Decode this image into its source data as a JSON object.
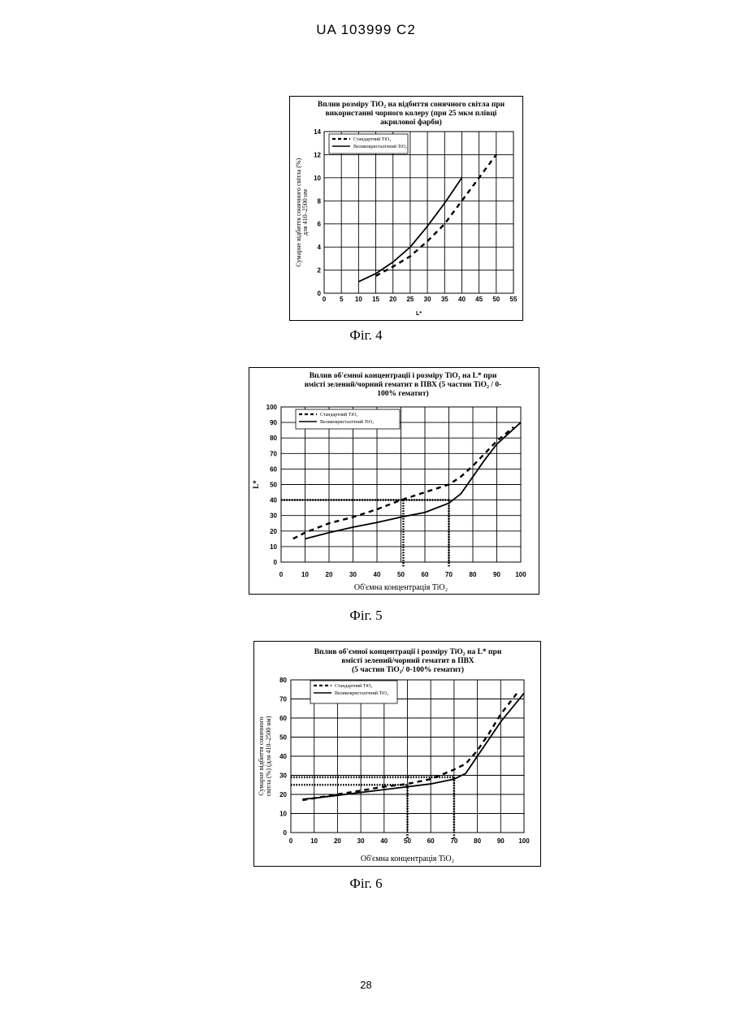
{
  "header": {
    "patent_id": "UA   103999   C2"
  },
  "page_number": "28",
  "chart_data": [
    {
      "id": "fig4",
      "type": "line",
      "caption": "Фіг. 4",
      "title": [
        "Вплив розміру TiO₂ на відбиття сонячного світла при",
        "використанні чорного колеру (при 25 мкм плівці",
        "акрилової фарби)"
      ],
      "xlabel": "L*",
      "ylabel": [
        "Сумарне відбиття сонячного світла (%)",
        "для 410–2500 нм"
      ],
      "xlim": [
        0,
        55
      ],
      "ylim": [
        0,
        14
      ],
      "xticks": [
        0,
        5,
        10,
        15,
        20,
        25,
        30,
        35,
        40,
        45,
        50,
        55
      ],
      "yticks": [
        0,
        2,
        4,
        6,
        8,
        10,
        12,
        14
      ],
      "grid": true,
      "legend_position": "top-left",
      "series": [
        {
          "name": "Стандартний TiO₂",
          "style": "dashed",
          "x": [
            15,
            20,
            25,
            30,
            35,
            40,
            45,
            50
          ],
          "y": [
            1.5,
            2.3,
            3.2,
            4.5,
            6,
            8,
            10,
            12
          ]
        },
        {
          "name": "Великокристалічний TiO₂",
          "style": "solid",
          "x": [
            10,
            15,
            20,
            25,
            30,
            35,
            40
          ],
          "y": [
            1,
            1.7,
            2.7,
            4,
            5.8,
            7.8,
            10
          ]
        }
      ],
      "guides": []
    },
    {
      "id": "fig5",
      "type": "line",
      "caption": "Фіг. 5",
      "title": [
        "Вплив об'ємної концентрації і розміру TiO₂ на L* при",
        "вмісті зелений/чорний гематит в ПВХ (5 частин TiO₂ / 0-",
        "100% гематит)"
      ],
      "xlabel": "Об'ємна концентрація TiO₂",
      "ylabel": [
        "L*"
      ],
      "xlim": [
        0,
        100
      ],
      "ylim": [
        0,
        100
      ],
      "xticks": [
        0,
        10,
        20,
        30,
        40,
        50,
        60,
        70,
        80,
        90,
        100
      ],
      "yticks": [
        0,
        10,
        20,
        30,
        40,
        50,
        60,
        70,
        80,
        90,
        100
      ],
      "grid": true,
      "legend_position": "top-left",
      "series": [
        {
          "name": "Стандартний TiO₂",
          "style": "dashed",
          "x": [
            5,
            10,
            20,
            30,
            40,
            50,
            60,
            70,
            75,
            80,
            85,
            90,
            97
          ],
          "y": [
            15,
            19,
            25,
            29,
            34,
            40,
            45,
            50,
            55,
            62,
            70,
            78,
            87
          ]
        },
        {
          "name": "Великокристалічний TiO₂",
          "style": "solid",
          "x": [
            10,
            20,
            30,
            40,
            50,
            60,
            70,
            75,
            80,
            85,
            90,
            100
          ],
          "y": [
            15,
            19,
            22.5,
            25.5,
            29,
            32,
            38,
            44,
            55,
            66,
            76,
            90
          ]
        }
      ],
      "guides": [
        {
          "points": [
            [
              0,
              40
            ],
            [
              70,
              40
            ]
          ]
        },
        {
          "points": [
            [
              51,
              40
            ],
            [
              51,
              -3
            ]
          ]
        },
        {
          "points": [
            [
              70,
              40
            ],
            [
              70,
              -3
            ]
          ]
        }
      ]
    },
    {
      "id": "fig6",
      "type": "line",
      "caption": "Фіг. 6",
      "title": [
        "Вплив об'ємної концентрації і розміру TiO₂ на L* при",
        "вмісті зелений/чорний гематит в ПВХ",
        "(5 частин TiO₂/ 0-100% гематит)"
      ],
      "xlabel": "Об'ємна концентрація TiO₂",
      "ylabel": [
        "Сумарне відбиття сонячного",
        "світла (%)   (для 410–2500 нм)"
      ],
      "xlim": [
        0,
        100
      ],
      "ylim": [
        0,
        80
      ],
      "xticks": [
        0,
        10,
        20,
        30,
        40,
        50,
        60,
        70,
        80,
        90,
        100
      ],
      "yticks": [
        0,
        10,
        20,
        30,
        40,
        50,
        60,
        70,
        80
      ],
      "grid": true,
      "legend_position": "top-left",
      "series": [
        {
          "name": "Стандартний TiO₂",
          "style": "dashed",
          "x": [
            5,
            10,
            20,
            30,
            40,
            50,
            60,
            70,
            75,
            80,
            85,
            90,
            97
          ],
          "y": [
            17,
            18,
            20,
            22,
            24,
            25.5,
            28,
            33,
            36,
            43,
            52,
            62,
            73
          ]
        },
        {
          "name": "Великокристалічний TiO₂",
          "style": "solid",
          "x": [
            5,
            10,
            20,
            30,
            40,
            50,
            60,
            70,
            75,
            80,
            85,
            90,
            100
          ],
          "y": [
            17.5,
            18,
            19.5,
            21,
            22.5,
            24,
            25.5,
            28,
            31,
            40,
            49,
            58,
            73
          ]
        }
      ],
      "guides": [
        {
          "points": [
            [
              0,
              29
            ],
            [
              70,
              29
            ]
          ]
        },
        {
          "points": [
            [
              0,
              25
            ],
            [
              50,
              25
            ]
          ]
        },
        {
          "points": [
            [
              50,
              25
            ],
            [
              50,
              -3
            ]
          ]
        },
        {
          "points": [
            [
              70,
              29
            ],
            [
              70,
              -3
            ]
          ]
        }
      ]
    }
  ]
}
